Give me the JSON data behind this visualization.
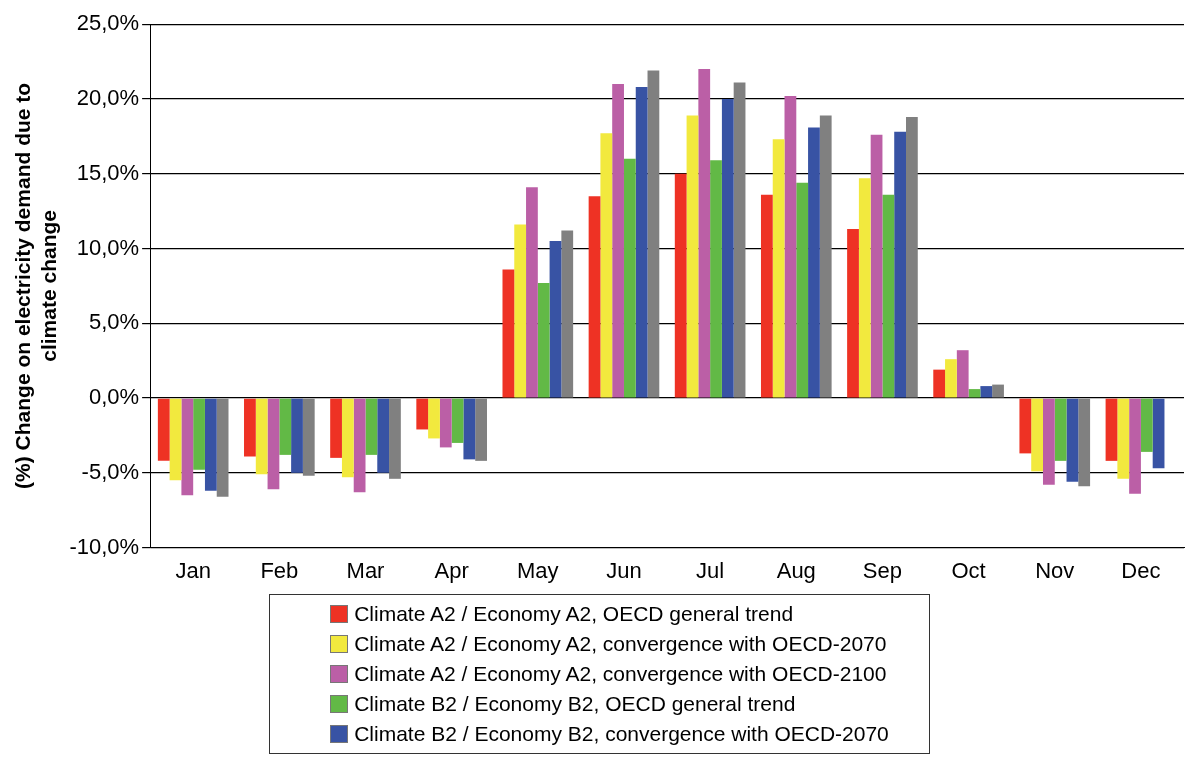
{
  "chart_data": {
    "type": "bar",
    "ylabel": "(%) Change on electricity demand due to climate change",
    "categories": [
      "Jan",
      "Feb",
      "Mar",
      "Apr",
      "May",
      "Jun",
      "Jul",
      "Aug",
      "Sep",
      "Oct",
      "Nov",
      "Dec"
    ],
    "series": [
      {
        "name": "Climate A2 / Economy A2, OECD general trend",
        "color": "#ee3224",
        "values": [
          -4.2,
          -3.9,
          -4.0,
          -2.1,
          8.6,
          13.5,
          15.0,
          13.6,
          11.3,
          1.9,
          -3.7,
          -4.2
        ]
      },
      {
        "name": "Climate A2 / Economy A2, convergence with OECD-2070",
        "color": "#f2e93e",
        "values": [
          -5.5,
          -5.1,
          -5.3,
          -2.7,
          11.6,
          17.7,
          18.9,
          17.3,
          14.7,
          2.6,
          -4.9,
          -5.4
        ]
      },
      {
        "name": "Climate A2 / Economy A2, convergence with OECD-2100",
        "color": "#bb5fa6",
        "values": [
          -6.5,
          -6.1,
          -6.3,
          -3.3,
          14.1,
          21.0,
          22.0,
          20.2,
          17.6,
          3.2,
          -5.8,
          -6.4
        ]
      },
      {
        "name": "Climate B2 / Economy B2, OECD general trend",
        "color": "#62b946",
        "values": [
          -4.8,
          -3.8,
          -3.8,
          -3.0,
          7.7,
          16.0,
          15.9,
          14.4,
          13.6,
          0.6,
          -4.2,
          -3.6
        ]
      },
      {
        "name": "Climate B2 / Economy B2, convergence with OECD-2070",
        "color": "#3853a4",
        "values": [
          -6.2,
          -5.0,
          -5.0,
          -4.1,
          10.5,
          20.8,
          20.0,
          18.1,
          17.8,
          0.8,
          -5.6,
          -4.7
        ]
      },
      {
        "color": "#808080",
        "values": [
          -6.6,
          -5.2,
          -5.4,
          -4.2,
          11.2,
          21.9,
          21.1,
          18.9,
          18.8,
          0.9,
          -5.9,
          null
        ]
      }
    ],
    "ylim": [
      -10,
      25
    ],
    "yticks": [
      {
        "value": -10,
        "label": "-10,0%"
      },
      {
        "value": -5,
        "label": "-5,0%"
      },
      {
        "value": 0,
        "label": "0,0%"
      },
      {
        "value": 5,
        "label": "5,0%"
      },
      {
        "value": 10,
        "label": "10,0%"
      },
      {
        "value": 15,
        "label": "15,0%"
      },
      {
        "value": 20,
        "label": "20,0%"
      },
      {
        "value": 25,
        "label": "25,0%"
      }
    ],
    "grid": "y",
    "legend": "bottom"
  }
}
